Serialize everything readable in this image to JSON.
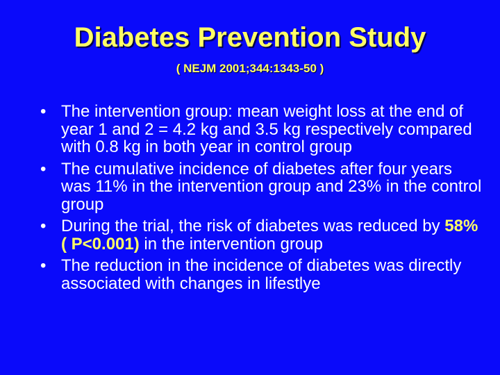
{
  "slide": {
    "title": "Diabetes Prevention Study",
    "subtitle": "( NEJM 2001;344:1343-50 )",
    "bullet_symbol": "•",
    "bullets": [
      {
        "text": "The intervention group: mean weight loss at the end of year 1 and 2 = 4.2 kg and 3.5 kg respectively compared with 0.8 kg in both year in control group"
      },
      {
        "text": "The cumulative incidence of diabetes after four years was 11% in the intervention group and 23% in the control group"
      },
      {
        "prefix": "During the trial, the risk of diabetes was reduced by ",
        "highlight": "58% ( P<0.001)",
        "suffix": " in the intervention group"
      },
      {
        "text": "The reduction in the incidence of diabetes was directly associated with changes in lifestlye"
      }
    ],
    "colors": {
      "background": "#0a0afa",
      "title": "#ffff66",
      "body_text": "#ffffff",
      "highlight": "#ffff66"
    }
  }
}
